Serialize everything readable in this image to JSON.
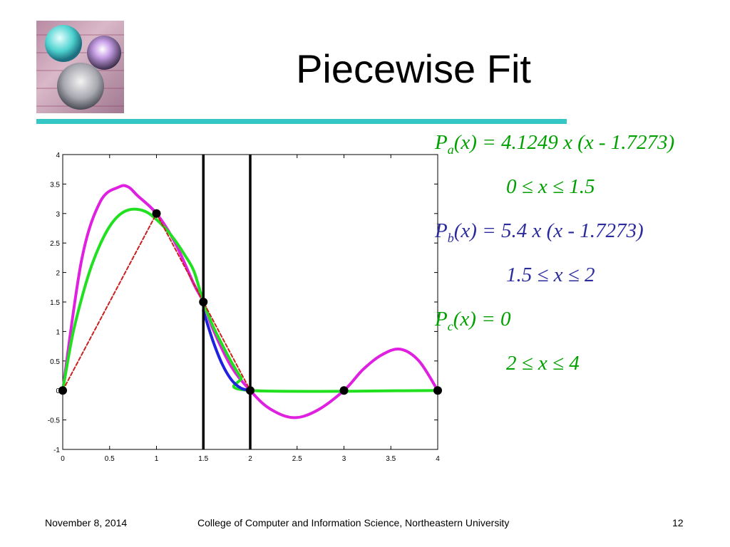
{
  "slide": {
    "title": "Piecewise Fit",
    "footer": {
      "date": "November 8, 2014",
      "center": "College of Computer and Information Science, Northeastern University",
      "page": "12"
    },
    "colors": {
      "accent_rule": "#35c6c6",
      "formula_a": "#00a000",
      "formula_b": "#2b2b9e",
      "formula_c": "#00a000"
    }
  },
  "formulas": [
    {
      "p": "P",
      "sub": "a",
      "expr": "(x) = 4.1249 x (x - 1.7273)",
      "range": "0 ≤ x  ≤ 1.5",
      "color": "#00a000"
    },
    {
      "p": "P",
      "sub": "b",
      "expr": "(x) = 5.4 x (x - 1.7273)",
      "range": "1.5 ≤ x  ≤ 2",
      "color": "#2b2b9e"
    },
    {
      "p": "P",
      "sub": "c",
      "expr": "(x) = 0",
      "range": "2 ≤ x  ≤ 4",
      "color": "#00a000"
    }
  ],
  "chart_data": {
    "type": "line",
    "title": "",
    "xlabel": "",
    "ylabel": "",
    "xlim": [
      0,
      4
    ],
    "ylim": [
      -1,
      4
    ],
    "grid": false,
    "x_ticks": [
      0,
      0.5,
      1,
      1.5,
      2,
      2.5,
      3,
      3.5,
      4
    ],
    "x_tick_labels": [
      "0",
      "0.5",
      "1",
      "1.5",
      "2",
      "2.5",
      "3",
      "3.5",
      "4"
    ],
    "y_ticks": [
      -1,
      -0.5,
      0,
      0.5,
      1,
      1.5,
      2,
      2.5,
      3,
      3.5,
      4
    ],
    "y_tick_labels": [
      "-1",
      "-0.5",
      "0",
      "0.5",
      "1",
      "1.5",
      "2",
      "2.5",
      "3",
      "3.5",
      "4"
    ],
    "series": [
      {
        "color": "#e020e0",
        "width": 4,
        "dash": false,
        "x": [
          0,
          0.2,
          0.4,
          0.6,
          0.7,
          0.8,
          1.0,
          1.2,
          1.4,
          1.5,
          1.6,
          1.8,
          2.0,
          2.2,
          2.45,
          2.7,
          3.0,
          3.2,
          3.4,
          3.6,
          3.8,
          4.0
        ],
        "y": [
          0,
          2.2,
          3.2,
          3.45,
          3.45,
          3.3,
          3.0,
          2.5,
          1.8,
          1.5,
          1.05,
          0.4,
          0,
          -0.3,
          -0.46,
          -0.35,
          0,
          0.35,
          0.6,
          0.7,
          0.5,
          0
        ]
      },
      {
        "color": "#20e020",
        "width": 4,
        "dash": false,
        "x": [
          0,
          0.1,
          0.2,
          0.3,
          0.4,
          0.5,
          0.6,
          0.7,
          0.8,
          0.9,
          1.0,
          1.1,
          1.2,
          1.3,
          1.4,
          1.5,
          1.6,
          1.7,
          1.8,
          1.9,
          2.0,
          4.0
        ],
        "y": [
          0,
          0.9,
          1.55,
          2.08,
          2.48,
          2.78,
          2.97,
          3.06,
          3.07,
          3.02,
          2.9,
          2.74,
          2.54,
          2.3,
          2.02,
          1.5,
          1.1,
          0.78,
          0.48,
          0.22,
          0,
          0
        ]
      },
      {
        "color": "#2020e0",
        "width": 4,
        "dash": false,
        "x": [
          1.5,
          1.6,
          1.7,
          1.8,
          1.9,
          2.0
        ],
        "y": [
          1.35,
          0.85,
          0.45,
          0.18,
          0.04,
          0
        ]
      },
      {
        "color": "#cc2020",
        "width": 2,
        "dash": true,
        "x": [
          0,
          1,
          1.5,
          2
        ],
        "y": [
          0,
          3,
          1.5,
          0
        ]
      }
    ],
    "points": [
      {
        "x": 0,
        "y": 0
      },
      {
        "x": 1,
        "y": 3
      },
      {
        "x": 1.5,
        "y": 1.5
      },
      {
        "x": 2,
        "y": 0
      },
      {
        "x": 3,
        "y": 0
      },
      {
        "x": 4,
        "y": 0
      }
    ],
    "vlines": [
      1.5,
      2
    ]
  }
}
